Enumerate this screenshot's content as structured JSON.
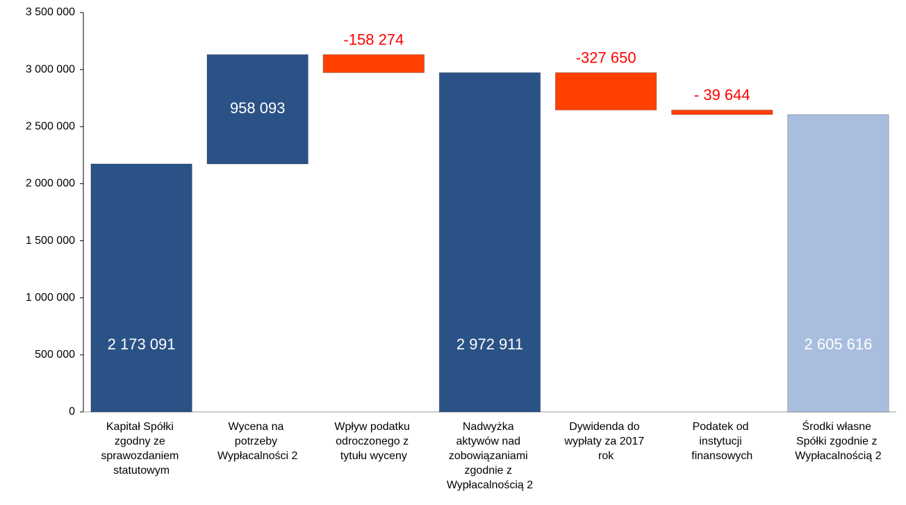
{
  "chart_data": {
    "type": "waterfall",
    "categories": [
      "Kapitał Spółki zgodny ze sprawozdaniem statutowym",
      "Wycena na potrzeby Wypłacalności 2",
      "Wpływ podatku odroczonego z tytułu wyceny",
      "Nadwyżka aktywów nad zobowiązaniami zgodnie z Wypłacalnością 2",
      "Dywidenda do wypłaty za 2017 rok",
      "Podatek od instytucji finansowych",
      "Środki własne Spółki zgodnie z Wypłacalnością 2"
    ],
    "measures": [
      "absolute",
      "relative",
      "relative",
      "total",
      "relative",
      "relative",
      "total"
    ],
    "values": [
      2173091,
      958093,
      -158274,
      2972911,
      -327650,
      -39644,
      2605616
    ],
    "value_labels": [
      "2 173 091",
      "958 093",
      "-158 274",
      "2 972 911",
      "-327 650",
      "- 39 644",
      "2 605 616"
    ],
    "colors": [
      "#2b5286",
      "#2b5286",
      "#ff4000",
      "#2b5286",
      "#ff4000",
      "#ff4000",
      "#a9bedf"
    ],
    "ylim": [
      0,
      3500000
    ],
    "yticks": [
      0,
      {
        "value": 500000,
        "label": "500 000"
      },
      {
        "value": 1000000,
        "label": "1 000 000"
      },
      {
        "value": 1500000,
        "label": "1 500 000"
      },
      {
        "value": 2000000,
        "label": "2 000 000"
      },
      {
        "value": 2500000,
        "label": "2 500 000"
      },
      {
        "value": 3000000,
        "label": "3 000 000"
      },
      {
        "value": 3500000,
        "label": "3 500 000"
      }
    ],
    "grid": false
  }
}
